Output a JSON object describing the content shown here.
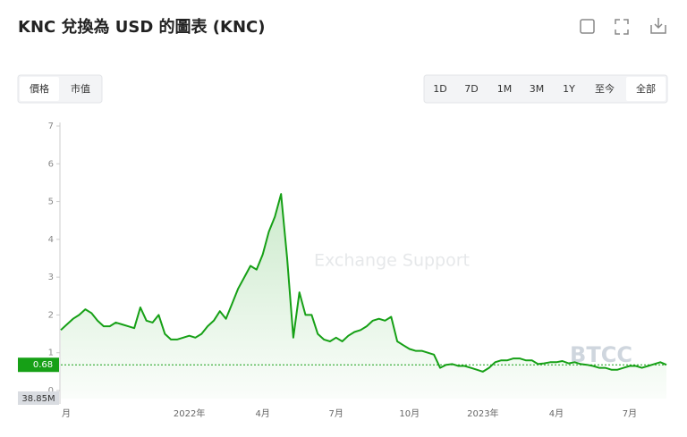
{
  "header": {
    "title": "KNC 兌換為 USD 的圖表 (KNC)"
  },
  "tabs": [
    "價格",
    "市值"
  ],
  "ranges": [
    "1D",
    "7D",
    "1M",
    "3M",
    "1Y",
    "至今",
    "全部"
  ],
  "watermarks": [
    "Exchange Support",
    "BTCC"
  ],
  "chart_data": {
    "type": "line",
    "color": "#16a016",
    "categories": [
      "月",
      null,
      null,
      null,
      null,
      null,
      null,
      null,
      null,
      null,
      null,
      null,
      null,
      null,
      null,
      null,
      null,
      null,
      null,
      null,
      null,
      "2022年",
      null,
      null,
      null,
      null,
      null,
      null,
      null,
      null,
      null,
      null,
      null,
      "4月",
      null,
      null,
      null,
      null,
      null,
      null,
      null,
      null,
      null,
      null,
      null,
      "7月",
      null,
      null,
      null,
      null,
      null,
      null,
      null,
      null,
      null,
      null,
      null,
      "10月",
      null,
      null,
      null,
      null,
      null,
      null,
      null,
      null,
      null,
      null,
      null,
      "2023年",
      null,
      null,
      null,
      null,
      null,
      null,
      null,
      null,
      null,
      null,
      null,
      "4月",
      null,
      null,
      null,
      null,
      null,
      null,
      null,
      null,
      null,
      null,
      null,
      "7月",
      null,
      null,
      null,
      null,
      null,
      null
    ],
    "values": [
      1.6,
      1.75,
      1.9,
      2.0,
      2.15,
      2.05,
      1.85,
      1.7,
      1.7,
      1.8,
      1.75,
      1.7,
      1.65,
      2.2,
      1.85,
      1.8,
      2.0,
      1.5,
      1.35,
      1.35,
      1.4,
      1.45,
      1.4,
      1.5,
      1.7,
      1.85,
      2.1,
      1.9,
      2.3,
      2.7,
      3.0,
      3.3,
      3.2,
      3.6,
      4.2,
      4.6,
      5.2,
      3.5,
      1.4,
      2.6,
      2.0,
      2.0,
      1.5,
      1.35,
      1.3,
      1.4,
      1.3,
      1.45,
      1.55,
      1.6,
      1.7,
      1.85,
      1.9,
      1.85,
      1.95,
      1.3,
      1.2,
      1.1,
      1.05,
      1.05,
      1.0,
      0.95,
      0.6,
      0.68,
      0.7,
      0.65,
      0.65,
      0.6,
      0.55,
      0.5,
      0.6,
      0.75,
      0.8,
      0.8,
      0.85,
      0.85,
      0.8,
      0.8,
      0.7,
      0.72,
      0.75,
      0.75,
      0.78,
      0.72,
      0.75,
      0.7,
      0.68,
      0.65,
      0.6,
      0.6,
      0.55,
      0.55,
      0.6,
      0.65,
      0.65,
      0.6,
      0.65,
      0.7,
      0.75,
      0.68
    ],
    "ylim": [
      0,
      7
    ],
    "yticks": [
      0,
      1,
      2,
      3,
      4,
      5,
      6,
      7
    ],
    "current_value": 0.68,
    "volume_label": "38.85M"
  }
}
